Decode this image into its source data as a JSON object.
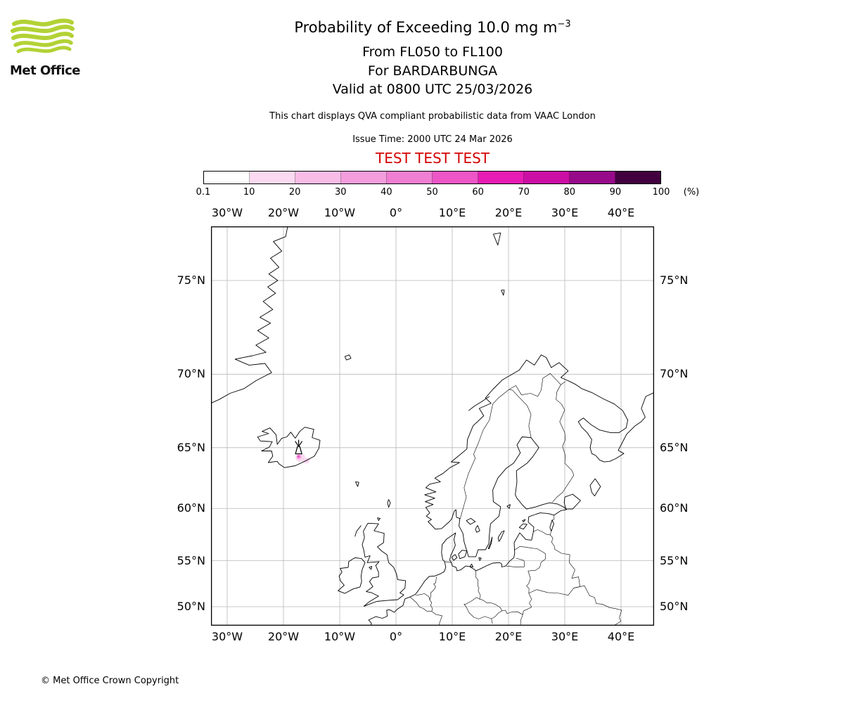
{
  "logo": {
    "text": "Met Office"
  },
  "header": {
    "title_prefix": "Probability of Exceeding 10.0 mg m",
    "title_sup": "−3",
    "subtitle_levels": "From FL050 to FL100",
    "subtitle_volcano": "For BARDARBUNGA",
    "subtitle_valid": "Valid at 0800 UTC 25/03/2026",
    "qva_note": "This chart displays QVA compliant probabilistic data from VAAC London",
    "issue_time": "Issue Time: 2000 UTC 24 Mar 2026",
    "test_banner": "TEST TEST TEST"
  },
  "colors": {
    "test_text": "#d40000",
    "logo_green": "#b2d235",
    "coastline": "#000000",
    "grid": "#b8b8b8"
  },
  "footer": {
    "copyright": "© Met Office Crown Copyright"
  },
  "chart_data": {
    "type": "heatmap",
    "title": "Probability of Exceeding 10.0 mg m−3",
    "flight_levels": "FL050 to FL100",
    "valid_time": "0800 UTC 25/03/2026",
    "issue_time": "2000 UTC 24 Mar 2026",
    "legend": {
      "unit": "(%)",
      "tick_labels": [
        "0.1",
        "10",
        "20",
        "30",
        "40",
        "50",
        "60",
        "70",
        "80",
        "90",
        "100"
      ],
      "bin_colors": [
        "#fefefe",
        "#fbd9f1",
        "#f8bce7",
        "#f49ddd",
        "#f07ed2",
        "#ee55c6",
        "#e71cb4",
        "#cb0fa5",
        "#970b8a",
        "#42003f"
      ]
    },
    "map": {
      "projection": "mercator",
      "extent": {
        "lon": [
          -32.9,
          45.9
        ],
        "lat": [
          47.8,
          77.3
        ]
      },
      "lon_ticks": [
        {
          "label": "30°W",
          "lon": -30
        },
        {
          "label": "20°W",
          "lon": -20
        },
        {
          "label": "10°W",
          "lon": -10
        },
        {
          "label": "0°",
          "lon": 0
        },
        {
          "label": "10°E",
          "lon": 10
        },
        {
          "label": "20°E",
          "lon": 20
        },
        {
          "label": "30°E",
          "lon": 30
        },
        {
          "label": "40°E",
          "lon": 40
        }
      ],
      "lat_ticks": [
        {
          "label": "75°N",
          "lat": 75
        },
        {
          "label": "70°N",
          "lat": 70
        },
        {
          "label": "65°N",
          "lat": 65
        },
        {
          "label": "60°N",
          "lat": 60
        },
        {
          "label": "55°N",
          "lat": 55
        },
        {
          "label": "50°N",
          "lat": 50
        }
      ]
    },
    "volcano": {
      "name": "BARDARBUNGA",
      "lon": -17.3,
      "lat": 64.8
    },
    "ash_max_probability_pct": 50,
    "ash_contours": [
      {
        "probability_pct": 10,
        "lon": -15.9,
        "lat": 64.0,
        "rx_deg": 0.6,
        "ry_deg": 0.22,
        "rot_deg": -22
      },
      {
        "probability_pct": 10,
        "lon": -17.0,
        "lat": 64.25,
        "rx_deg": 0.85,
        "ry_deg": 0.34,
        "rot_deg": -18
      },
      {
        "probability_pct": 30,
        "lon": -17.25,
        "lat": 64.3,
        "rx_deg": 0.42,
        "ry_deg": 0.18,
        "rot_deg": -18
      },
      {
        "probability_pct": 50,
        "lon": -17.33,
        "lat": 64.33,
        "rx_deg": 0.2,
        "ry_deg": 0.09,
        "rot_deg": -18
      }
    ]
  }
}
